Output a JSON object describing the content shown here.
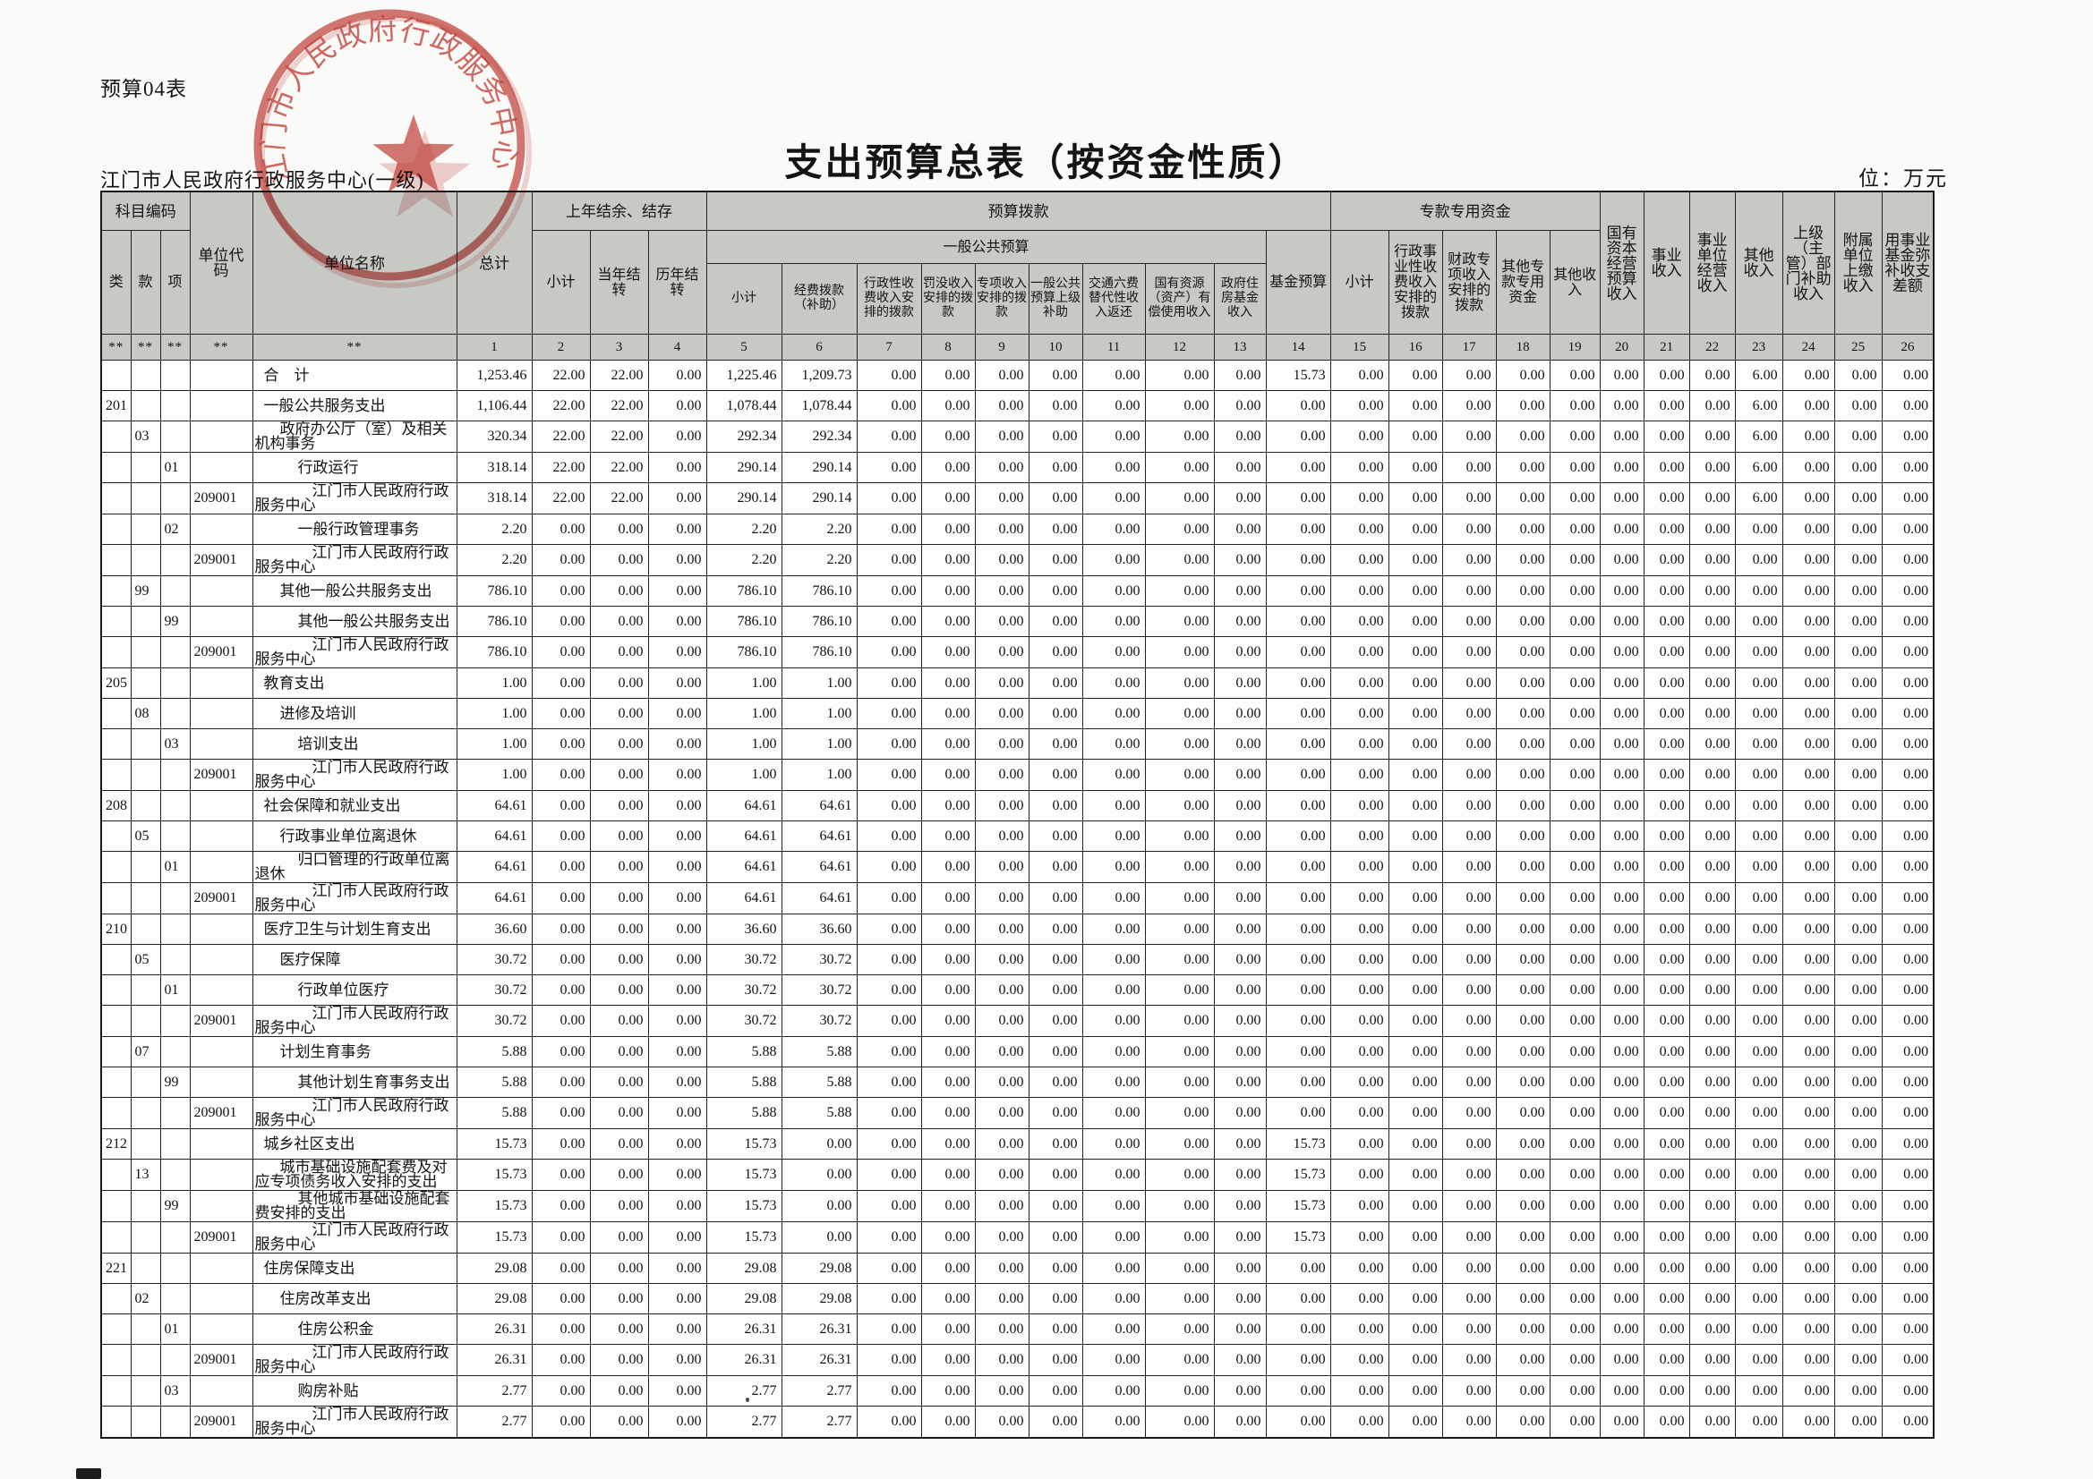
{
  "meta": {
    "form_label": "预算04表",
    "title": "支出预算总表（按资金性质）",
    "org_line": "江门市人民政府行政服务中心(一级)",
    "unit_note": "位：万元"
  },
  "stamp": {
    "text": "江门市人民政府行政服务中心",
    "color": "#c4423c"
  },
  "zero_value": "0.00",
  "header": {
    "subject_code": "科目编码",
    "cls": "类",
    "sec": "款",
    "item": "项",
    "unit_code": "单位代码",
    "unit_name": "单位名称",
    "total": "总计",
    "group_carryover": "上年结余、结存",
    "carry_sub": [
      "小计",
      "当年结转",
      "历年结转"
    ],
    "group_appropriation": "预算拨款",
    "group_general": "一般公共预算",
    "general_cols": [
      "小计",
      "经费拨款（补助）",
      "行政性收费收入安排的拨款",
      "罚没收入安排的拨款",
      "专项收入安排的拨款",
      "一般公共预算上级补助",
      "交通六费替代性收入返还",
      "国有资源（资产）有偿使用收入",
      "政府住房基金收入"
    ],
    "fund_budget": "基金预算",
    "group_special": "专款专用资金",
    "special_cols": [
      "小计",
      "行政事业性收费收入安排的拨款",
      "财政专项收入安排的拨款",
      "其他专款专用资金",
      "其他收入"
    ],
    "tail_cols": [
      "国有资本经营预算收入",
      "事业收入",
      "事业单位经营收入",
      "其他收入",
      "上级（主管）部门补助收入",
      "附属单位上缴收入",
      "用事业基金弥补收支差额"
    ],
    "star_marks": [
      "**",
      "**",
      "**",
      "**",
      "**"
    ],
    "col_numbers": [
      "1",
      "2",
      "3",
      "4",
      "5",
      "6",
      "7",
      "8",
      "9",
      "10",
      "11",
      "12",
      "13",
      "14",
      "15",
      "16",
      "17",
      "18",
      "19",
      "20",
      "21",
      "22",
      "23",
      "24",
      "25",
      "26"
    ]
  },
  "rows": [
    {
      "name": "合　计",
      "lvl": 0,
      "v": {
        "1": "1,253.46",
        "2": "22.00",
        "3": "22.00",
        "5": "1,225.46",
        "6": "1,209.73",
        "14": "15.73",
        "23": "6.00"
      }
    },
    {
      "cls": "201",
      "name": "一般公共服务支出",
      "lvl": 0,
      "v": {
        "1": "1,106.44",
        "2": "22.00",
        "3": "22.00",
        "5": "1,078.44",
        "6": "1,078.44",
        "23": "6.00"
      }
    },
    {
      "sec": "03",
      "name": "政府办公厅（室）及相关机构事务",
      "lvl": 1,
      "v": {
        "1": "320.34",
        "2": "22.00",
        "3": "22.00",
        "5": "292.34",
        "6": "292.34",
        "23": "6.00"
      }
    },
    {
      "itm": "01",
      "name": "行政运行",
      "lvl": 2,
      "v": {
        "1": "318.14",
        "2": "22.00",
        "3": "22.00",
        "5": "290.14",
        "6": "290.14",
        "23": "6.00"
      }
    },
    {
      "code": "209001",
      "name": "江门市人民政府行政服务中心",
      "lvl": 3,
      "v": {
        "1": "318.14",
        "2": "22.00",
        "3": "22.00",
        "5": "290.14",
        "6": "290.14",
        "23": "6.00"
      }
    },
    {
      "itm": "02",
      "name": "一般行政管理事务",
      "lvl": 2,
      "v": {
        "1": "2.20",
        "5": "2.20",
        "6": "2.20"
      }
    },
    {
      "code": "209001",
      "name": "江门市人民政府行政服务中心",
      "lvl": 3,
      "v": {
        "1": "2.20",
        "5": "2.20",
        "6": "2.20"
      }
    },
    {
      "sec": "99",
      "name": "其他一般公共服务支出",
      "lvl": 1,
      "v": {
        "1": "786.10",
        "5": "786.10",
        "6": "786.10"
      }
    },
    {
      "itm": "99",
      "name": "其他一般公共服务支出",
      "lvl": 2,
      "v": {
        "1": "786.10",
        "5": "786.10",
        "6": "786.10"
      }
    },
    {
      "code": "209001",
      "name": "江门市人民政府行政服务中心",
      "lvl": 3,
      "v": {
        "1": "786.10",
        "5": "786.10",
        "6": "786.10"
      }
    },
    {
      "cls": "205",
      "name": "教育支出",
      "lvl": 0,
      "v": {
        "1": "1.00",
        "5": "1.00",
        "6": "1.00"
      }
    },
    {
      "sec": "08",
      "name": "进修及培训",
      "lvl": 1,
      "v": {
        "1": "1.00",
        "5": "1.00",
        "6": "1.00"
      }
    },
    {
      "itm": "03",
      "name": "培训支出",
      "lvl": 2,
      "v": {
        "1": "1.00",
        "5": "1.00",
        "6": "1.00"
      }
    },
    {
      "code": "209001",
      "name": "江门市人民政府行政服务中心",
      "lvl": 3,
      "v": {
        "1": "1.00",
        "5": "1.00",
        "6": "1.00"
      }
    },
    {
      "cls": "208",
      "name": "社会保障和就业支出",
      "lvl": 0,
      "v": {
        "1": "64.61",
        "5": "64.61",
        "6": "64.61"
      }
    },
    {
      "sec": "05",
      "name": "行政事业单位离退休",
      "lvl": 1,
      "v": {
        "1": "64.61",
        "5": "64.61",
        "6": "64.61"
      }
    },
    {
      "itm": "01",
      "name": "归口管理的行政单位离退休",
      "lvl": 2,
      "v": {
        "1": "64.61",
        "5": "64.61",
        "6": "64.61"
      }
    },
    {
      "code": "209001",
      "name": "江门市人民政府行政服务中心",
      "lvl": 3,
      "v": {
        "1": "64.61",
        "5": "64.61",
        "6": "64.61"
      }
    },
    {
      "cls": "210",
      "name": "医疗卫生与计划生育支出",
      "lvl": 0,
      "v": {
        "1": "36.60",
        "5": "36.60",
        "6": "36.60"
      }
    },
    {
      "sec": "05",
      "name": "医疗保障",
      "lvl": 1,
      "v": {
        "1": "30.72",
        "5": "30.72",
        "6": "30.72"
      }
    },
    {
      "itm": "01",
      "name": "行政单位医疗",
      "lvl": 2,
      "v": {
        "1": "30.72",
        "5": "30.72",
        "6": "30.72"
      }
    },
    {
      "code": "209001",
      "name": "江门市人民政府行政服务中心",
      "lvl": 3,
      "v": {
        "1": "30.72",
        "5": "30.72",
        "6": "30.72"
      }
    },
    {
      "sec": "07",
      "name": "计划生育事务",
      "lvl": 1,
      "v": {
        "1": "5.88",
        "5": "5.88",
        "6": "5.88"
      }
    },
    {
      "itm": "99",
      "name": "其他计划生育事务支出",
      "lvl": 2,
      "v": {
        "1": "5.88",
        "5": "5.88",
        "6": "5.88"
      }
    },
    {
      "code": "209001",
      "name": "江门市人民政府行政服务中心",
      "lvl": 3,
      "v": {
        "1": "5.88",
        "5": "5.88",
        "6": "5.88"
      }
    },
    {
      "cls": "212",
      "name": "城乡社区支出",
      "lvl": 0,
      "v": {
        "1": "15.73",
        "5": "15.73",
        "14": "15.73"
      }
    },
    {
      "sec": "13",
      "name": "城市基础设施配套费及对应专项债务收入安排的支出",
      "lvl": 1,
      "v": {
        "1": "15.73",
        "5": "15.73",
        "14": "15.73"
      }
    },
    {
      "itm": "99",
      "name": "其他城市基础设施配套费安排的支出",
      "lvl": 2,
      "v": {
        "1": "15.73",
        "5": "15.73",
        "14": "15.73"
      }
    },
    {
      "code": "209001",
      "name": "江门市人民政府行政服务中心",
      "lvl": 3,
      "v": {
        "1": "15.73",
        "5": "15.73",
        "14": "15.73"
      }
    },
    {
      "cls": "221",
      "name": "住房保障支出",
      "lvl": 0,
      "v": {
        "1": "29.08",
        "5": "29.08",
        "6": "29.08"
      }
    },
    {
      "sec": "02",
      "name": "住房改革支出",
      "lvl": 1,
      "v": {
        "1": "29.08",
        "5": "29.08",
        "6": "29.08"
      }
    },
    {
      "itm": "01",
      "name": "住房公积金",
      "lvl": 2,
      "v": {
        "1": "26.31",
        "5": "26.31",
        "6": "26.31"
      }
    },
    {
      "code": "209001",
      "name": "江门市人民政府行政服务中心",
      "lvl": 3,
      "v": {
        "1": "26.31",
        "5": "26.31",
        "6": "26.31"
      }
    },
    {
      "itm": "03",
      "name": "购房补贴",
      "lvl": 2,
      "v": {
        "1": "2.77",
        "5": "2.77",
        "6": "2.77"
      }
    },
    {
      "code": "209001",
      "name": "江门市人民政府行政服务中心",
      "lvl": 3,
      "v": {
        "1": "2.77",
        "5": "2.77",
        "6": "2.77"
      }
    }
  ]
}
